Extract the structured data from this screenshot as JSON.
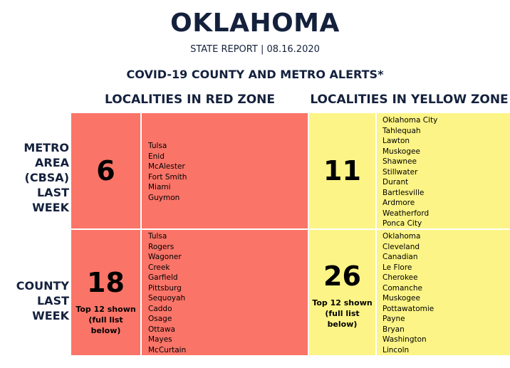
{
  "header": {
    "title": "OKLAHOMA",
    "subtitle": "STATE REPORT | 08.16.2020",
    "section_title": "COVID-19 COUNTY AND METRO ALERTS*"
  },
  "columns": {
    "red_heading": "LOCALITIES IN RED ZONE",
    "yellow_heading": "LOCALITIES IN YELLOW ZONE"
  },
  "rows": {
    "metro_label": [
      "METRO",
      "AREA",
      "(CBSA)",
      "LAST WEEK"
    ],
    "county_label": [
      "COUNTY",
      "LAST WEEK"
    ]
  },
  "colors": {
    "red_zone": "#fa7468",
    "yellow_zone": "#fcf486",
    "heading_text": "#14213d"
  },
  "metro": {
    "red": {
      "count": "6",
      "localities": [
        "Tulsa",
        "Enid",
        "McAlester",
        "Fort Smith",
        "Miami",
        "Guymon"
      ]
    },
    "yellow": {
      "count": "11",
      "localities": [
        "Oklahoma City",
        "Tahlequah",
        "Lawton",
        "Muskogee",
        "Shawnee",
        "Stillwater",
        "Durant",
        "Bartlesville",
        "Ardmore",
        "Weatherford",
        "Ponca City"
      ]
    }
  },
  "county": {
    "red": {
      "count": "18",
      "note": [
        "Top 12 shown",
        "(full list",
        "below)"
      ],
      "localities": [
        "Tulsa",
        "Rogers",
        "Wagoner",
        "Creek",
        "Garfield",
        "Pittsburg",
        "Sequoyah",
        "Caddo",
        "Osage",
        "Ottawa",
        "Mayes",
        "McCurtain"
      ]
    },
    "yellow": {
      "count": "26",
      "note": [
        "Top 12 shown",
        "(full list",
        "below)"
      ],
      "localities": [
        "Oklahoma",
        "Cleveland",
        "Canadian",
        "Le Flore",
        "Cherokee",
        "Comanche",
        "Muskogee",
        "Pottawatomie",
        "Payne",
        "Bryan",
        "Washington",
        "Lincoln"
      ]
    }
  }
}
